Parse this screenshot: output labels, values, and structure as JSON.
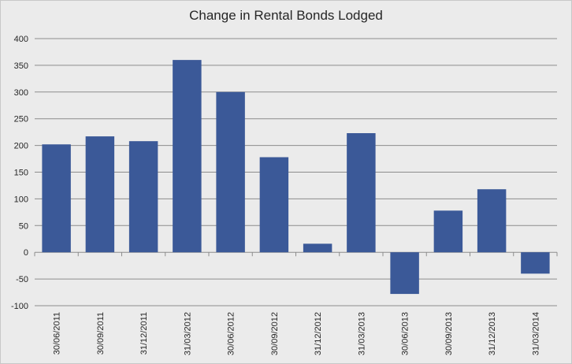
{
  "chart_data": {
    "type": "bar",
    "title": "Change in Rental Bonds Lodged",
    "xlabel": "",
    "ylabel": "",
    "categories": [
      "30/06/2011",
      "30/09/2011",
      "31/12/2011",
      "31/03/2012",
      "30/06/2012",
      "30/09/2012",
      "31/12/2012",
      "31/03/2013",
      "30/06/2013",
      "30/09/2013",
      "31/12/2013",
      "31/03/2014"
    ],
    "values": [
      202,
      217,
      208,
      360,
      300,
      178,
      16,
      223,
      -78,
      78,
      118,
      -40
    ],
    "ylim": [
      -100,
      400
    ],
    "yticks": [
      -100,
      -50,
      0,
      50,
      100,
      150,
      200,
      250,
      300,
      350,
      400
    ],
    "grid": true,
    "bar_color": "#3b5998",
    "grid_color": "#8c8c8c"
  }
}
